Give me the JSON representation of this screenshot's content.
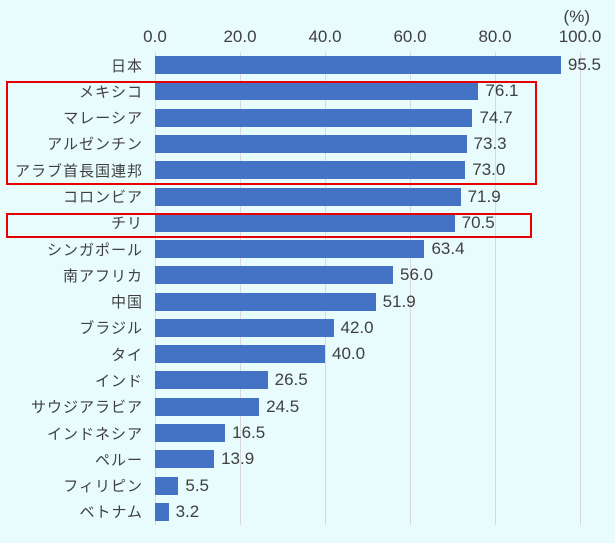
{
  "chart_data": {
    "type": "bar",
    "orientation": "horizontal",
    "title": "",
    "unit_label": "(%)",
    "xlim": [
      0,
      100
    ],
    "grid": true,
    "x_ticks": [
      {
        "value": 0,
        "label": "0.0"
      },
      {
        "value": 20,
        "label": "20.0"
      },
      {
        "value": 40,
        "label": "40.0"
      },
      {
        "value": 60,
        "label": "60.0"
      },
      {
        "value": 80,
        "label": "80.0"
      },
      {
        "value": 100,
        "label": "100.0"
      }
    ],
    "categories": [
      "日本",
      "メキシコ",
      "マレーシア",
      "アルゼンチン",
      "アラブ首長国連邦",
      "コロンビア",
      "チリ",
      "シンガポール",
      "南アフリカ",
      "中国",
      "ブラジル",
      "タイ",
      "インド",
      "サウジアラビア",
      "インドネシア",
      "ペルー",
      "フィリピン",
      "ベトナム"
    ],
    "values": [
      95.5,
      76.1,
      74.7,
      73.3,
      73.0,
      71.9,
      70.5,
      63.4,
      56.0,
      51.9,
      42.0,
      40.0,
      26.5,
      24.5,
      16.5,
      13.9,
      5.5,
      3.2
    ],
    "value_labels": [
      "95.5",
      "76.1",
      "74.7",
      "73.3",
      "73.0",
      "71.9",
      "70.5",
      "63.4",
      "56.0",
      "51.9",
      "42.0",
      "40.0",
      "26.5",
      "24.5",
      "16.5",
      "13.9",
      "5.5",
      "3.2"
    ],
    "bar_color": "#4472c4",
    "background_color": "#e8fbfd",
    "gridline_color": "#d9d9d9",
    "text_color": "#404040",
    "highlight_color": "#e60000",
    "highlight_boxes": [
      {
        "rows": [
          1,
          4
        ],
        "categories": [
          "メキシコ",
          "マレーシア",
          "アルゼンチン",
          "アラブ首長国連邦"
        ],
        "color": "#e60000"
      },
      {
        "rows": [
          6,
          6
        ],
        "categories": [
          "チリ"
        ],
        "color": "#e60000"
      }
    ]
  }
}
